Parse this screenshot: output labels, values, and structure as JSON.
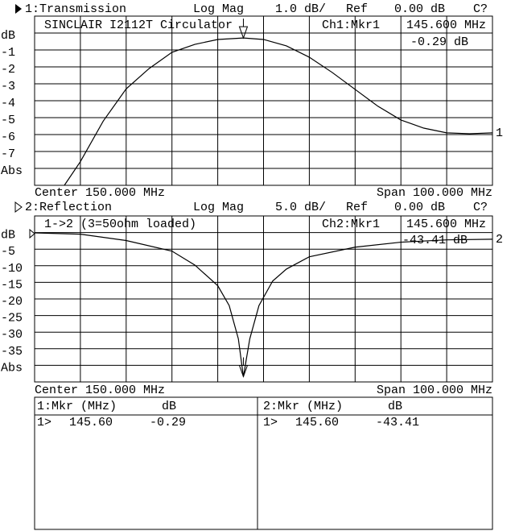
{
  "chart_data": [
    {
      "type": "line",
      "header": {
        "channel": "1:Transmission",
        "format": "Log Mag",
        "scale": "1.0 dB/",
        "ref_label": "Ref",
        "ref": "0.00 dB",
        "cal": "C?"
      },
      "annotation": "SINCLAIR I2112T Circulator",
      "marker": {
        "title": "Ch1:Mkr1",
        "x": 145.6,
        "x_label": "145.600 MHz",
        "y": -0.29,
        "y_label": "-0.29 dB"
      },
      "center_label": "Center 150.000 MHz",
      "span_label": "Span 100.000 MHz",
      "xlim": [
        100,
        200
      ],
      "ylim": [
        -9,
        1
      ],
      "yticks": [
        {
          "value": 0,
          "label": "dB"
        },
        -1,
        -2,
        -3,
        -4,
        -5,
        -6,
        -7,
        {
          "value": -8,
          "label": "Abs"
        }
      ],
      "x": [
        106.5,
        110,
        115,
        120,
        125,
        130,
        135,
        140,
        145.6,
        150,
        155,
        160,
        165,
        170,
        175,
        180,
        185,
        190,
        195,
        200
      ],
      "series": [
        {
          "name": "1",
          "color": "#000000",
          "values": [
            -9,
            -7.6,
            -5.2,
            -3.3,
            -2.1,
            -1.14,
            -0.67,
            -0.38,
            -0.29,
            -0.38,
            -0.76,
            -1.43,
            -2.33,
            -3.33,
            -4.33,
            -5.14,
            -5.62,
            -5.9,
            -5.95,
            -5.9
          ]
        }
      ]
    },
    {
      "type": "line",
      "header": {
        "channel": "2:Reflection",
        "format": "Log Mag",
        "scale": "5.0 dB/",
        "ref_label": "Ref",
        "ref": "0.00 dB",
        "cal": "C?"
      },
      "annotation": "1->2 (3=50ohm loaded)",
      "marker": {
        "title": "Ch2:Mkr1",
        "x": 145.6,
        "x_label": "145.600 MHz",
        "y": -43.41,
        "y_label": "-43.41 dB"
      },
      "center_label": "Center 150.000 MHz",
      "span_label": "Span 100.000 MHz",
      "xlim": [
        100,
        200
      ],
      "ylim": [
        -45,
        5
      ],
      "yticks": [
        {
          "value": 0,
          "label": "dB"
        },
        -5,
        -10,
        -15,
        -20,
        -25,
        -30,
        -35,
        {
          "value": -40,
          "label": "Abs"
        }
      ],
      "x": [
        100,
        110,
        120,
        130,
        135,
        140,
        142.5,
        144.5,
        145.6,
        147,
        149,
        152,
        155,
        160,
        170,
        180,
        190,
        200
      ],
      "series": [
        {
          "name": "2",
          "color": "#000000",
          "values": [
            -0.1,
            -0.5,
            -2.4,
            -5.6,
            -9.8,
            -16,
            -22,
            -32,
            -43.41,
            -32,
            -22,
            -14.6,
            -11,
            -7.3,
            -4.4,
            -2.9,
            -2.2,
            -2
          ]
        }
      ]
    }
  ],
  "marker_table": [
    {
      "header": [
        "1:Mkr (MHz)",
        "dB"
      ],
      "rows": [
        [
          "1>",
          "145.60",
          "-0.29"
        ]
      ]
    },
    {
      "header": [
        "2:Mkr (MHz)",
        "dB"
      ],
      "rows": [
        [
          "1>",
          "145.60",
          "-43.41"
        ]
      ]
    }
  ]
}
